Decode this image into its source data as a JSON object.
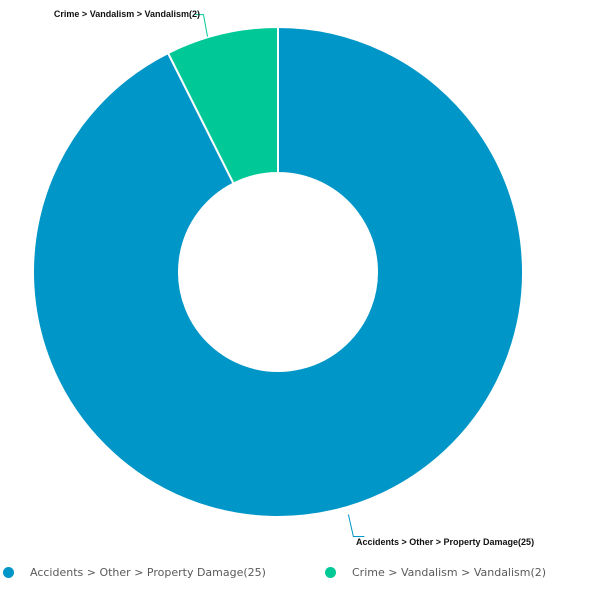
{
  "chart_data": {
    "type": "pie",
    "variant": "donut",
    "labels": [
      "Accidents > Other > Property Damage(25)",
      "Crime > Vandalism > Vandalism(2)"
    ],
    "values": [
      25,
      2
    ],
    "colors": [
      "#0096c7",
      "#00c896"
    ],
    "title": "",
    "legend": {
      "placement": "bottom",
      "items": [
        "Accidents > Other > Property Damage(25)",
        "Crime > Vandalism > Vandalism(2)"
      ]
    }
  }
}
